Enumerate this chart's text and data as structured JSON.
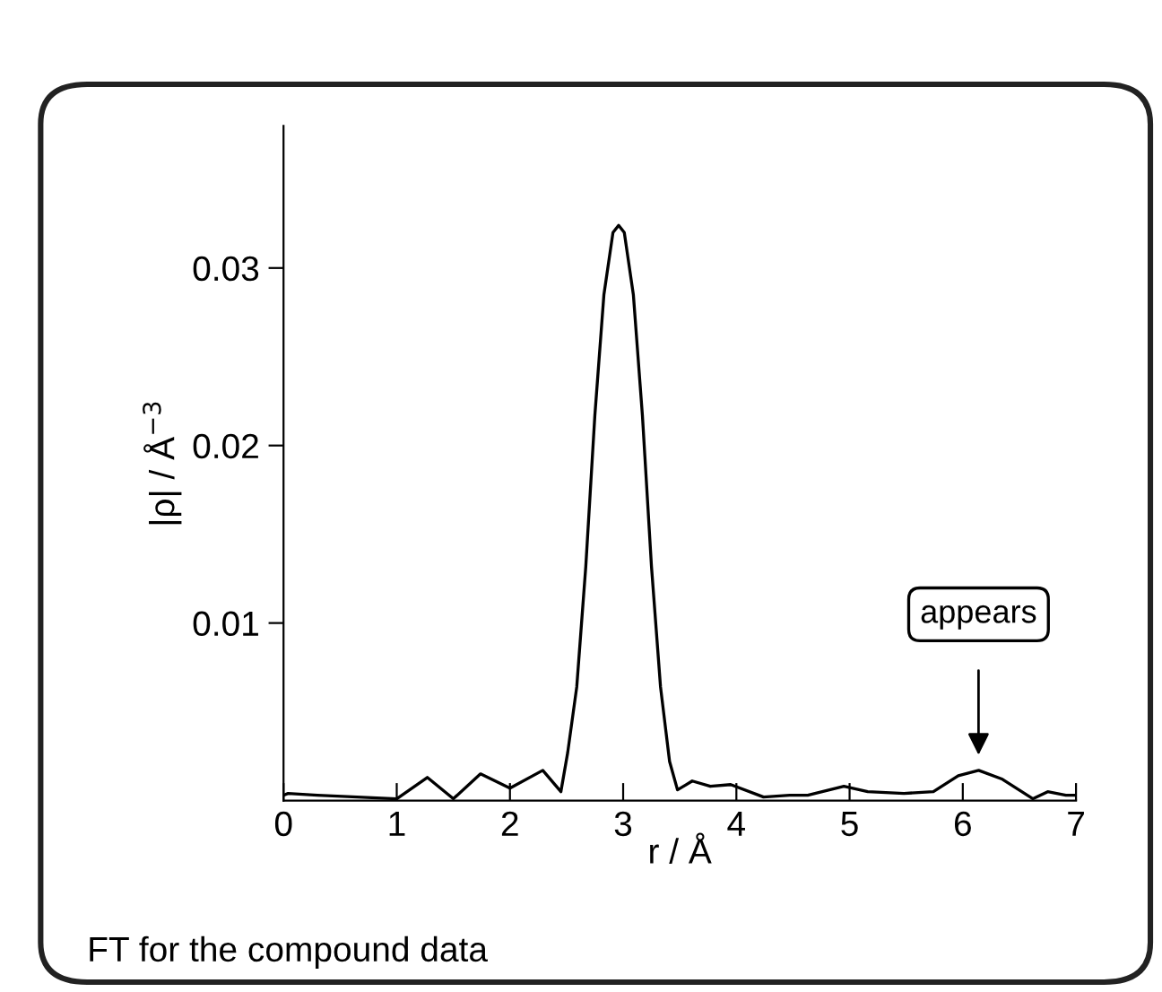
{
  "chart_data": {
    "type": "line",
    "xlabel": "r / Å",
    "ylabel": "|ρ| / Å$^{−3}$",
    "x": [
      0.0,
      0.04,
      0.3,
      1.0,
      1.27,
      1.5,
      1.74,
      2.0,
      2.29,
      2.45,
      2.51,
      2.59,
      2.67,
      2.75,
      2.83,
      2.91,
      2.96,
      3.01,
      3.09,
      3.17,
      3.25,
      3.33,
      3.41,
      3.48,
      3.61,
      3.77,
      3.95,
      4.24,
      4.47,
      4.63,
      4.95,
      5.16,
      5.48,
      5.74,
      5.96,
      6.14,
      6.35,
      6.62,
      6.75,
      6.91,
      7.0
    ],
    "series": [
      {
        "color": "#000000",
        "values": [
          0.0003,
          0.0004,
          0.0003,
          0.0001,
          0.0013,
          0.0001,
          0.0015,
          0.0007,
          0.0017,
          0.0005,
          0.0027,
          0.0064,
          0.0132,
          0.0217,
          0.0285,
          0.032,
          0.0324,
          0.032,
          0.0285,
          0.0217,
          0.0132,
          0.0064,
          0.0022,
          0.0006,
          0.0011,
          0.0008,
          0.0009,
          0.0002,
          0.0003,
          0.0003,
          0.0008,
          0.0005,
          0.0004,
          0.0005,
          0.0014,
          0.0017,
          0.0012,
          0.0001,
          0.0005,
          0.0003,
          0.0003
        ]
      }
    ],
    "xlim": [
      0,
      7
    ],
    "xticks": [
      0,
      1,
      2,
      3,
      4,
      5,
      6,
      7
    ],
    "ylim": [
      0,
      0.038
    ],
    "yticks": [
      0.01,
      0.02,
      0.03
    ],
    "grid": false,
    "legend": false,
    "marker": "none",
    "line_style": "solid",
    "annotations": [
      "appears",
      "FT for the compound data"
    ]
  }
}
